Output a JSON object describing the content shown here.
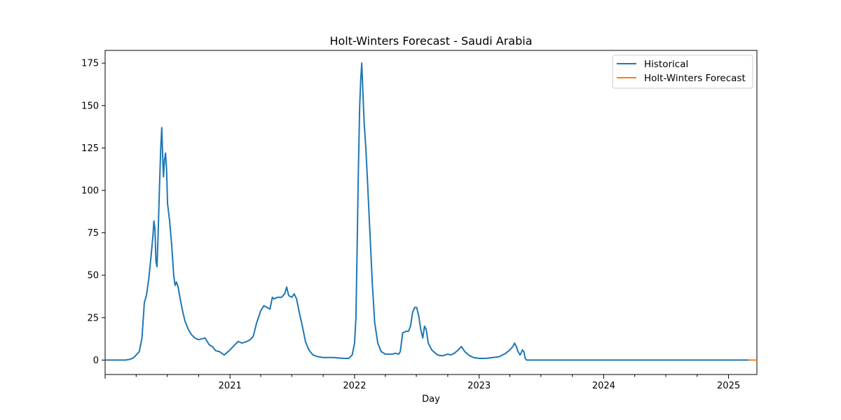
{
  "chart_data": {
    "type": "line",
    "title": "Holt-Winters Forecast - Saudi Arabia",
    "xlabel": "Day",
    "ylabel": "",
    "xlim": [
      "2020-01-01",
      "2025-03-25"
    ],
    "ylim": [
      -8.5,
      182.5
    ],
    "y_ticks": [
      0,
      25,
      50,
      75,
      100,
      125,
      150,
      175
    ],
    "x_ticks": [
      {
        "date": "2021-01-01",
        "label": "2021"
      },
      {
        "date": "2022-01-01",
        "label": "2022"
      },
      {
        "date": "2023-01-01",
        "label": "2023"
      },
      {
        "date": "2024-01-01",
        "label": "2024"
      },
      {
        "date": "2025-01-01",
        "label": "2025"
      }
    ],
    "grid": false,
    "legend_position": "top-right",
    "series": [
      {
        "name": "Historical",
        "color": "#1f77b4",
        "points": [
          [
            "2020-01-01",
            0
          ],
          [
            "2020-03-01",
            0
          ],
          [
            "2020-03-15",
            0.5
          ],
          [
            "2020-03-25",
            1.5
          ],
          [
            "2020-04-01",
            3
          ],
          [
            "2020-04-10",
            5
          ],
          [
            "2020-04-18",
            13
          ],
          [
            "2020-04-25",
            34
          ],
          [
            "2020-05-01",
            38
          ],
          [
            "2020-05-08",
            48
          ],
          [
            "2020-05-15",
            62
          ],
          [
            "2020-05-20",
            73
          ],
          [
            "2020-05-23",
            82
          ],
          [
            "2020-05-26",
            77
          ],
          [
            "2020-05-29",
            58
          ],
          [
            "2020-06-01",
            55
          ],
          [
            "2020-06-04",
            72
          ],
          [
            "2020-06-08",
            100
          ],
          [
            "2020-06-12",
            125
          ],
          [
            "2020-06-15",
            137
          ],
          [
            "2020-06-18",
            118
          ],
          [
            "2020-06-20",
            108
          ],
          [
            "2020-06-23",
            118
          ],
          [
            "2020-06-26",
            122
          ],
          [
            "2020-06-29",
            113
          ],
          [
            "2020-07-02",
            92
          ],
          [
            "2020-07-08",
            82
          ],
          [
            "2020-07-14",
            68
          ],
          [
            "2020-07-20",
            50
          ],
          [
            "2020-07-24",
            44
          ],
          [
            "2020-07-28",
            46
          ],
          [
            "2020-08-02",
            43
          ],
          [
            "2020-08-08",
            36
          ],
          [
            "2020-08-15",
            29
          ],
          [
            "2020-08-22",
            23
          ],
          [
            "2020-09-01",
            18
          ],
          [
            "2020-09-10",
            15
          ],
          [
            "2020-09-20",
            13
          ],
          [
            "2020-10-01",
            12
          ],
          [
            "2020-10-10",
            12.5
          ],
          [
            "2020-10-20",
            13
          ],
          [
            "2020-11-01",
            9
          ],
          [
            "2020-11-10",
            8
          ],
          [
            "2020-11-20",
            5.5
          ],
          [
            "2020-12-01",
            5
          ],
          [
            "2020-12-15",
            3
          ],
          [
            "2021-01-01",
            6
          ],
          [
            "2021-01-15",
            9
          ],
          [
            "2021-01-25",
            11
          ],
          [
            "2021-02-05",
            10
          ],
          [
            "2021-02-20",
            11
          ],
          [
            "2021-03-01",
            12
          ],
          [
            "2021-03-10",
            14
          ],
          [
            "2021-03-20",
            22
          ],
          [
            "2021-04-01",
            29
          ],
          [
            "2021-04-10",
            32
          ],
          [
            "2021-04-20",
            31
          ],
          [
            "2021-04-28",
            30
          ],
          [
            "2021-05-05",
            37
          ],
          [
            "2021-05-10",
            36
          ],
          [
            "2021-05-20",
            37
          ],
          [
            "2021-06-01",
            37
          ],
          [
            "2021-06-10",
            39
          ],
          [
            "2021-06-16",
            43
          ],
          [
            "2021-06-22",
            38
          ],
          [
            "2021-07-01",
            37
          ],
          [
            "2021-07-08",
            39
          ],
          [
            "2021-07-15",
            36
          ],
          [
            "2021-07-22",
            29
          ],
          [
            "2021-08-01",
            20
          ],
          [
            "2021-08-10",
            11
          ],
          [
            "2021-08-20",
            6
          ],
          [
            "2021-09-01",
            3
          ],
          [
            "2021-09-15",
            2
          ],
          [
            "2021-10-01",
            1.5
          ],
          [
            "2021-11-01",
            1.5
          ],
          [
            "2021-12-01",
            1
          ],
          [
            "2021-12-15",
            1
          ],
          [
            "2021-12-25",
            3
          ],
          [
            "2022-01-01",
            10
          ],
          [
            "2022-01-05",
            25
          ],
          [
            "2022-01-08",
            60
          ],
          [
            "2022-01-12",
            110
          ],
          [
            "2022-01-16",
            150
          ],
          [
            "2022-01-19",
            165
          ],
          [
            "2022-01-22",
            175
          ],
          [
            "2022-01-25",
            160
          ],
          [
            "2022-01-29",
            140
          ],
          [
            "2022-02-03",
            125
          ],
          [
            "2022-02-08",
            105
          ],
          [
            "2022-02-15",
            75
          ],
          [
            "2022-02-22",
            45
          ],
          [
            "2022-03-01",
            22
          ],
          [
            "2022-03-10",
            10
          ],
          [
            "2022-03-20",
            5
          ],
          [
            "2022-04-01",
            3.5
          ],
          [
            "2022-04-20",
            3.5
          ],
          [
            "2022-05-01",
            4
          ],
          [
            "2022-05-10",
            3.5
          ],
          [
            "2022-05-15",
            5
          ],
          [
            "2022-05-22",
            16
          ],
          [
            "2022-06-01",
            17
          ],
          [
            "2022-06-08",
            17
          ],
          [
            "2022-06-14",
            20
          ],
          [
            "2022-06-20",
            28
          ],
          [
            "2022-06-26",
            31
          ],
          [
            "2022-07-02",
            31
          ],
          [
            "2022-07-08",
            26
          ],
          [
            "2022-07-14",
            18
          ],
          [
            "2022-07-20",
            13
          ],
          [
            "2022-07-25",
            20
          ],
          [
            "2022-07-30",
            18
          ],
          [
            "2022-08-05",
            10
          ],
          [
            "2022-08-15",
            6
          ],
          [
            "2022-09-01",
            3
          ],
          [
            "2022-09-15",
            2.5
          ],
          [
            "2022-10-01",
            3.5
          ],
          [
            "2022-10-10",
            3
          ],
          [
            "2022-10-20",
            4
          ],
          [
            "2022-11-01",
            6
          ],
          [
            "2022-11-10",
            8
          ],
          [
            "2022-11-20",
            5
          ],
          [
            "2022-12-01",
            3
          ],
          [
            "2022-12-15",
            1.5
          ],
          [
            "2023-01-01",
            1
          ],
          [
            "2023-01-20",
            1
          ],
          [
            "2023-02-10",
            1.5
          ],
          [
            "2023-03-01",
            2
          ],
          [
            "2023-03-20",
            4
          ],
          [
            "2023-04-01",
            6
          ],
          [
            "2023-04-10",
            8
          ],
          [
            "2023-04-15",
            10
          ],
          [
            "2023-04-20",
            8
          ],
          [
            "2023-04-25",
            5
          ],
          [
            "2023-05-01",
            3
          ],
          [
            "2023-05-08",
            6
          ],
          [
            "2023-05-12",
            5
          ],
          [
            "2023-05-16",
            1
          ],
          [
            "2023-05-20",
            0
          ],
          [
            "2023-06-01",
            0
          ],
          [
            "2024-01-01",
            0
          ],
          [
            "2025-01-01",
            0
          ],
          [
            "2025-03-01",
            0
          ]
        ]
      },
      {
        "name": "Holt-Winters Forecast",
        "color": "#ff7f0e",
        "points": [
          [
            "2025-03-01",
            0
          ],
          [
            "2025-03-25",
            0
          ]
        ]
      }
    ]
  }
}
